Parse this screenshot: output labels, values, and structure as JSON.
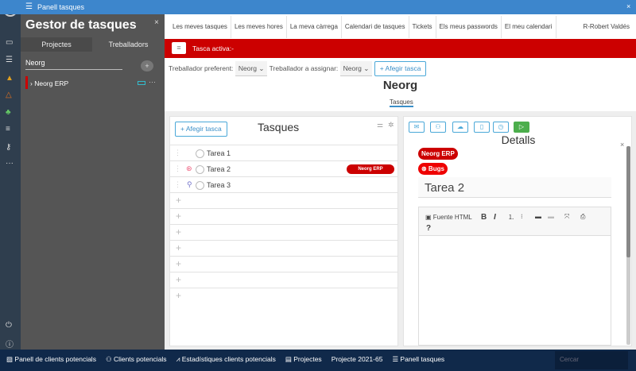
{
  "window": {
    "title": "Panell tasques"
  },
  "sidebar": {
    "title": "Gestor de tasques",
    "tabs": [
      "Projectes",
      "Treballadors"
    ],
    "search_value": "Neorg",
    "projects": [
      {
        "name": "Neorg ERP"
      }
    ],
    "close": "×",
    "add": "+"
  },
  "nav": {
    "tabs": [
      "Les meves tasques",
      "Les meves hores",
      "La meva càrrega",
      "Calendari de tasques",
      "Tickets",
      "Els meus passwords",
      "El meu calendari"
    ],
    "user": "R-Robert Valdés"
  },
  "active_bar": {
    "text": "Tasca activa:-",
    "color": "#cc0000"
  },
  "filters": {
    "preferred_label": "Treballador preferent:",
    "preferred_value": "Neorg",
    "assign_label": "Treballador a assignar:",
    "assign_value": "Neorg",
    "add_task": "+ Afegir tasca"
  },
  "project": {
    "title": "Neorg",
    "subtab": "Tasques"
  },
  "tasks_panel": {
    "title": "Tasques",
    "add_task": "+ Afegir tasca",
    "tasks": [
      {
        "name": "Tarea 1",
        "tag": ""
      },
      {
        "name": "Tarea 2",
        "tag": "Neorg ERP"
      },
      {
        "name": "Tarea 3",
        "tag": ""
      }
    ],
    "empty_rows": 7
  },
  "details": {
    "title": "Detalls",
    "tags": [
      "Neorg ERP",
      "⊛ Bugs"
    ],
    "task_name": "Tarea 2",
    "editor": {
      "source": "Fuente HTML",
      "bold": "B",
      "italic": "I",
      "help": "?"
    },
    "close": "×"
  },
  "taskbar": {
    "items": [
      "Panell de clients potencials",
      "Clients potencials",
      "Estadístiques clients potencials",
      "Projectes",
      "Projecte 2021-65",
      "Panell tasques"
    ],
    "search_placeholder": "Cercar"
  }
}
